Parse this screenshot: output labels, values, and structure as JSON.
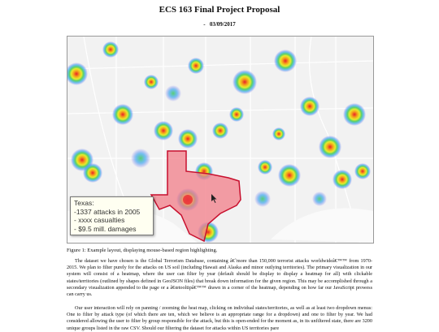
{
  "header": {
    "title": "ECS 163 Final Project Proposal",
    "date": "-   03/09/2017"
  },
  "figure": {
    "tooltip": {
      "lines": [
        "Texas:",
        "-1337 attacks in 2005",
        "- xxxx casualties",
        "- $9.5 mill. damages"
      ]
    },
    "caption": "Figure 1: Example layout, displaying mouse-based region highlighting."
  },
  "paragraphs": [
    "The dataset we have chosen is the Global Terrorism Database, containing â€˜more than 150,000 terrorist attacks worldwideâ€™™ from 1970-2015. We plan to filter purely for the attacks on US soil (including Hawaii and Alaska and minor outlying territories). The primary visualization in our system will consist of a heatmap, where the user can filter by year (default should be display to display a heatmap for all) with clickable states/territories (outlined by shapes defined in GeoJSON files) that break down information for the given region. This may be accomplished through a secondary visualization appended to the page or a â€œtooltipâ€™™ drawn in a corner of the heatmap, depending on how far our JavaScript prowess can carry us.",
    "Our user interaction will rely on panning / zooming the heat map, clicking on individual states/territories, as well as at least two dropdown menus: One to filter by attack type (of which there are ten, which we believe is an appropriate range for a dropdown) and one to filter by year. We had considered allowing the user to filter by group responsible for the attack, but this is open-ended for the moment as, in its unfiltered state, there are 3200 unique groups listed in the raw CSV. Should our filtering the dataset for attacks within US territories pare"
  ]
}
